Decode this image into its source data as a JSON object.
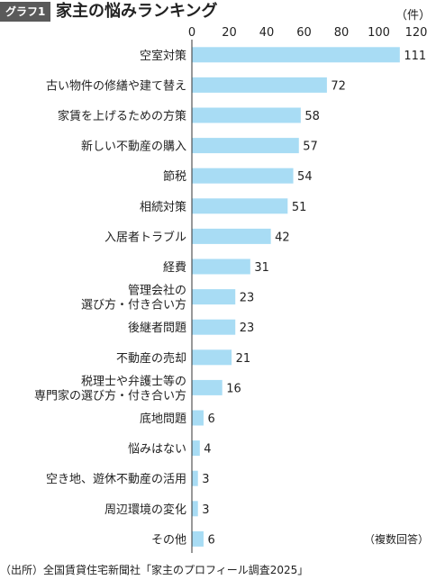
{
  "header": {
    "badge": "グラフ1",
    "title": "家主の悩みランキング",
    "unit": "（件）"
  },
  "note": "（複数回答）",
  "source": "（出所）全国賃貸住宅新聞社「家主のプロフィール調査2025」",
  "colors": {
    "bar": "#a8dcf4",
    "axis": "#333333",
    "text": "#222222"
  },
  "chart_data": {
    "type": "bar",
    "orientation": "horizontal",
    "categories": [
      [
        "空室対策"
      ],
      [
        "古い物件の修繕や建て替え"
      ],
      [
        "家賃を上げるための方策"
      ],
      [
        "新しい不動産の購入"
      ],
      [
        "節税"
      ],
      [
        "相続対策"
      ],
      [
        "入居者トラブル"
      ],
      [
        "経費"
      ],
      [
        "管理会社の",
        "選び方・付き合い方"
      ],
      [
        "後継者問題"
      ],
      [
        "不動産の売却"
      ],
      [
        "税理士や弁護士等の",
        "専門家の選び方・付き合い方"
      ],
      [
        "底地問題"
      ],
      [
        "悩みはない"
      ],
      [
        "空き地、遊休不動産の活用"
      ],
      [
        "周辺環境の変化"
      ],
      [
        "その他"
      ]
    ],
    "values": [
      111,
      72,
      58,
      57,
      54,
      51,
      42,
      31,
      23,
      23,
      21,
      16,
      6,
      4,
      3,
      3,
      6
    ],
    "xlim": [
      0,
      120
    ],
    "xticks": [
      0,
      20,
      40,
      60,
      80,
      100,
      120
    ],
    "grid": false,
    "legend": "none"
  }
}
